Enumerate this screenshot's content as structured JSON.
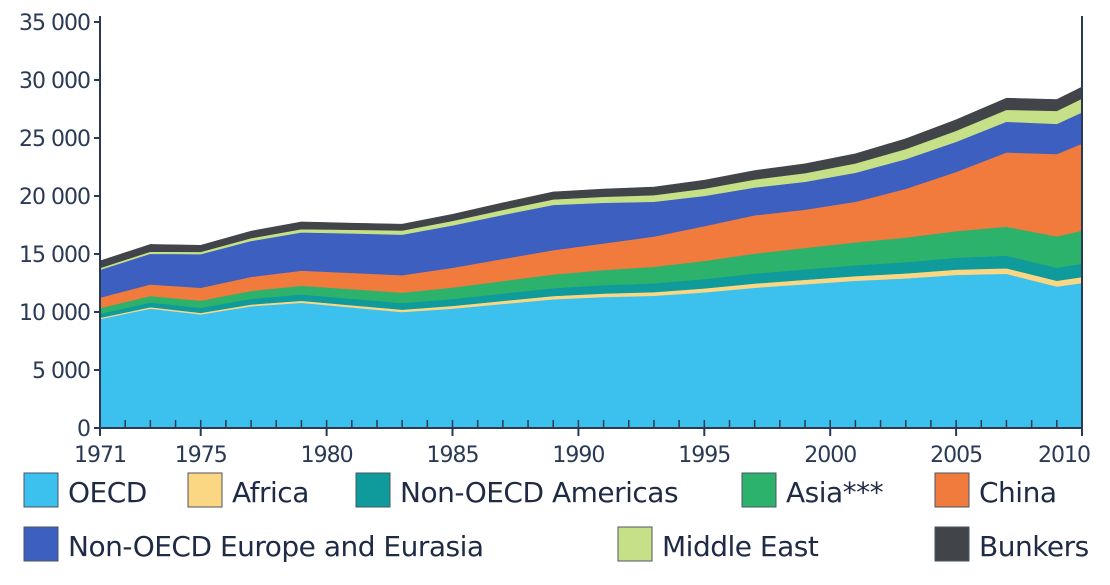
{
  "chart_data": {
    "type": "area",
    "stacked": true,
    "title": "",
    "xlabel": "",
    "ylabel": "",
    "ylim": [
      0,
      35000
    ],
    "yticks": [
      0,
      5000,
      10000,
      15000,
      20000,
      25000,
      30000,
      35000
    ],
    "ytick_labels": [
      "0",
      "5 000",
      "10 000",
      "15 000",
      "20 000",
      "25 000",
      "30 000",
      "35 000"
    ],
    "xlim": [
      1971,
      2010
    ],
    "xticks": [
      1971,
      1975,
      1980,
      1985,
      1990,
      1995,
      2000,
      2005,
      2010
    ],
    "xtick_labels": [
      "1971",
      "1975",
      "1980",
      "1985",
      "1990",
      "1995",
      "2000",
      "2005",
      "2010"
    ],
    "grid": false,
    "legend_position": "bottom",
    "x": [
      1971,
      1973,
      1975,
      1977,
      1979,
      1981,
      1983,
      1985,
      1987,
      1989,
      1991,
      1993,
      1995,
      1997,
      1999,
      2001,
      2003,
      2005,
      2007,
      2009,
      2010
    ],
    "series": [
      {
        "name": "OECD",
        "color": "#3cc0ee",
        "values": [
          9400,
          10300,
          9800,
          10500,
          10800,
          10400,
          10000,
          10300,
          10700,
          11100,
          11300,
          11400,
          11700,
          12100,
          12400,
          12700,
          12900,
          13200,
          13300,
          12200,
          12500
        ]
      },
      {
        "name": "Africa",
        "color": "#fbd783",
        "values": [
          100,
          120,
          130,
          150,
          170,
          190,
          210,
          230,
          260,
          280,
          300,
          320,
          340,
          360,
          380,
          400,
          430,
          460,
          480,
          500,
          520
        ]
      },
      {
        "name": "Non-OECD Americas",
        "color": "#0f9a9b",
        "values": [
          350,
          400,
          440,
          490,
          540,
          560,
          570,
          600,
          640,
          680,
          720,
          760,
          810,
          860,
          900,
          930,
          970,
          1020,
          1080,
          1120,
          1150
        ]
      },
      {
        "name": "Asia***",
        "color": "#2db26c",
        "values": [
          500,
          560,
          620,
          690,
          760,
          830,
          900,
          990,
          1080,
          1180,
          1300,
          1430,
          1560,
          1720,
          1850,
          1980,
          2130,
          2300,
          2500,
          2700,
          2850
        ]
      },
      {
        "name": "China",
        "color": "#f07b3c",
        "values": [
          900,
          1000,
          1100,
          1200,
          1300,
          1400,
          1500,
          1700,
          1900,
          2100,
          2300,
          2600,
          3000,
          3300,
          3300,
          3500,
          4200,
          5100,
          6400,
          7100,
          7500
        ]
      },
      {
        "name": "Non-OECD Europe and Eurasia",
        "color": "#3d5fbf",
        "values": [
          2400,
          2650,
          2900,
          3100,
          3300,
          3400,
          3500,
          3650,
          3800,
          3900,
          3500,
          3000,
          2600,
          2400,
          2400,
          2500,
          2550,
          2600,
          2650,
          2600,
          2700
        ]
      },
      {
        "name": "Middle East",
        "color": "#c6e087",
        "values": [
          150,
          180,
          200,
          240,
          280,
          320,
          350,
          390,
          430,
          470,
          520,
          570,
          630,
          690,
          750,
          810,
          880,
          950,
          1030,
          1120,
          1180
        ]
      },
      {
        "name": "Bunkers",
        "color": "#414449",
        "values": [
          600,
          620,
          560,
          600,
          620,
          560,
          540,
          560,
          600,
          640,
          660,
          690,
          720,
          760,
          800,
          820,
          870,
          940,
          990,
          980,
          1000
        ]
      }
    ]
  },
  "legend": {
    "items": [
      {
        "label": "OECD",
        "color": "#3cc0ee"
      },
      {
        "label": "Africa",
        "color": "#fbd783"
      },
      {
        "label": "Non-OECD Americas",
        "color": "#0f9a9b"
      },
      {
        "label": "Asia***",
        "color": "#2db26c"
      },
      {
        "label": "China",
        "color": "#f07b3c"
      },
      {
        "label": "Non-OECD Europe and Eurasia",
        "color": "#3d5fbf"
      },
      {
        "label": "Middle East",
        "color": "#c6e087"
      },
      {
        "label": "Bunkers",
        "color": "#414449"
      }
    ]
  },
  "colors": {
    "axis": "#2a3a55",
    "background": "#ffffff"
  }
}
